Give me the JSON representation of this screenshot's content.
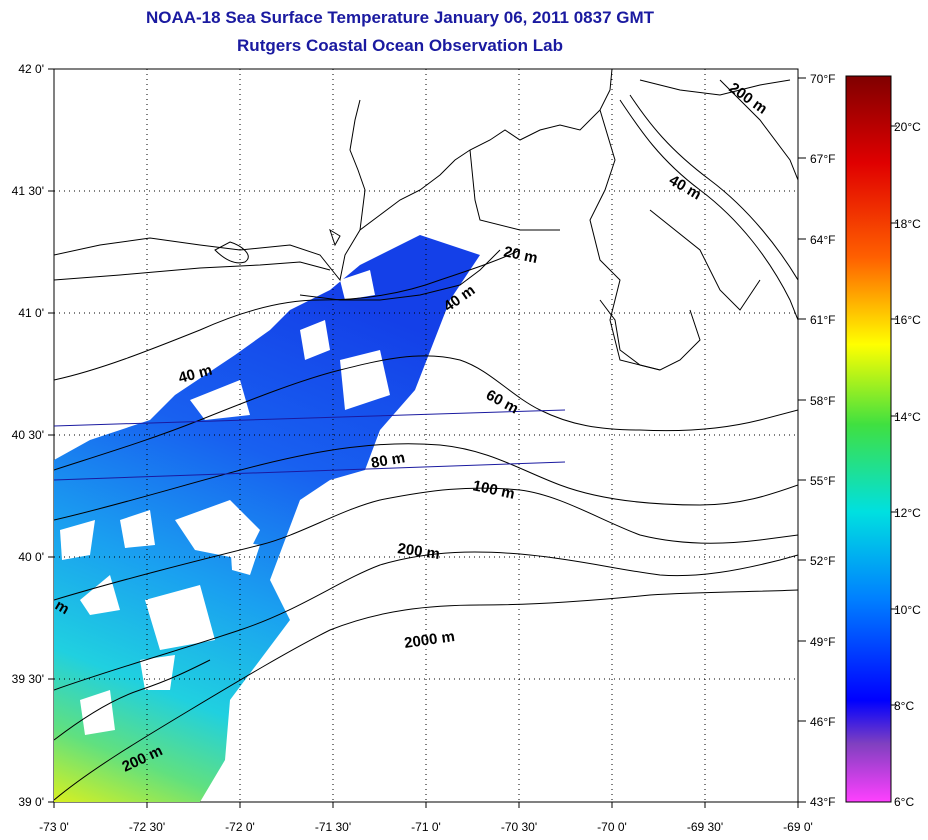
{
  "header": {
    "title": "NOAA-18 Sea Surface Temperature January 06, 2011 0837 GMT",
    "subtitle": "Rutgers Coastal Ocean Observation Lab"
  },
  "map": {
    "lon_labels": [
      "-73 0'",
      "-72 30'",
      "-72 0'",
      "-71 30'",
      "-71 0'",
      "-70 30'",
      "-70 0'",
      "-69 30'",
      "-69 0'"
    ],
    "lat_labels": [
      "42 0'",
      "41 30'",
      "41 0'",
      "40 30'",
      "40 0'",
      "39 30'",
      "39 0'"
    ],
    "contour_labels": [
      "20 m",
      "40 m",
      "40 m",
      "40 m",
      "60 m",
      "80 m",
      "100 m",
      "200 m",
      "200 m",
      "200 m",
      "2000 m",
      "m"
    ],
    "colors": {
      "land_line": "#000000",
      "grid": "#000000",
      "title": "#1a1aa0"
    }
  },
  "colorbar": {
    "fahrenheit_labels": [
      "70°F",
      "67°F",
      "64°F",
      "61°F",
      "58°F",
      "55°F",
      "52°F",
      "49°F",
      "46°F",
      "43°F"
    ],
    "celsius_labels": [
      "20°C",
      "18°C",
      "16°C",
      "14°C",
      "12°C",
      "10°C",
      "8°C",
      "6°C"
    ],
    "stops": [
      "#800000",
      "#ff0000",
      "#ff8000",
      "#ffff00",
      "#40e040",
      "#00e0e0",
      "#0080ff",
      "#0000ff",
      "#8040c0",
      "#ff40ff"
    ]
  }
}
